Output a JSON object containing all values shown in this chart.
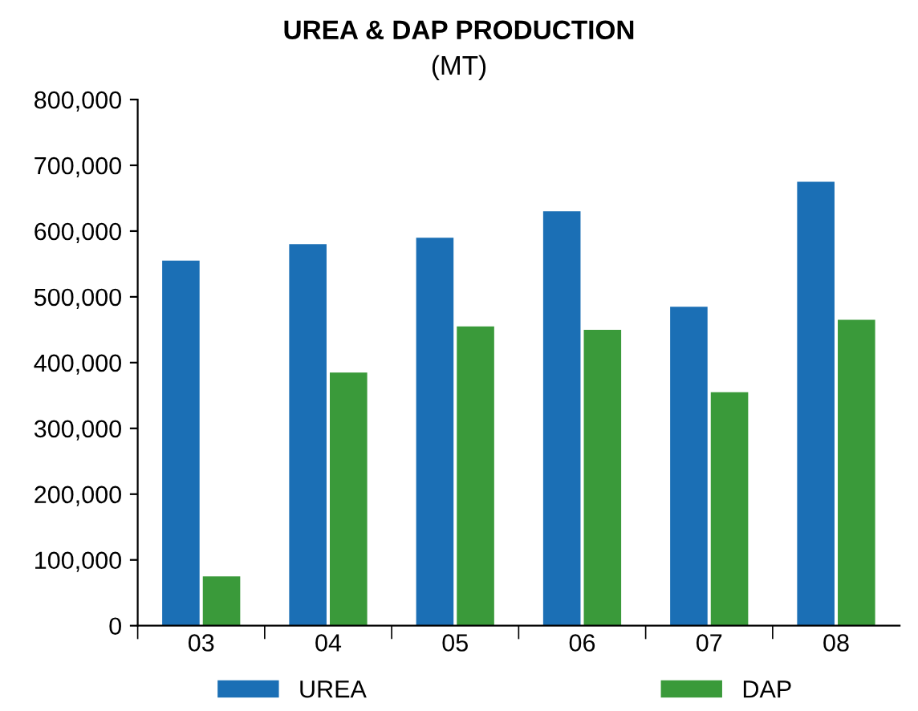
{
  "chart_data": {
    "type": "bar",
    "title": "UREA & DAP PRODUCTION",
    "subtitle": "(MT)",
    "categories": [
      "03",
      "04",
      "05",
      "06",
      "07",
      "08"
    ],
    "series": [
      {
        "name": "UREA",
        "color": "#1b6fb5",
        "values": [
          555000,
          580000,
          590000,
          630000,
          485000,
          675000
        ]
      },
      {
        "name": "DAP",
        "color": "#3a9a3a",
        "values": [
          75000,
          385000,
          455000,
          450000,
          355000,
          465000
        ]
      }
    ],
    "ylim": [
      0,
      800000
    ],
    "yticks": [
      {
        "value": 0,
        "label": "0"
      },
      {
        "value": 100000,
        "label": "100,000"
      },
      {
        "value": 200000,
        "label": "200,000"
      },
      {
        "value": 300000,
        "label": "300,000"
      },
      {
        "value": 400000,
        "label": "400,000"
      },
      {
        "value": 500000,
        "label": "500,000"
      },
      {
        "value": 600000,
        "label": "600,000"
      },
      {
        "value": 700000,
        "label": "700,000"
      },
      {
        "value": 800000,
        "label": "800,000"
      }
    ],
    "grid": false,
    "legend": "bottom"
  }
}
